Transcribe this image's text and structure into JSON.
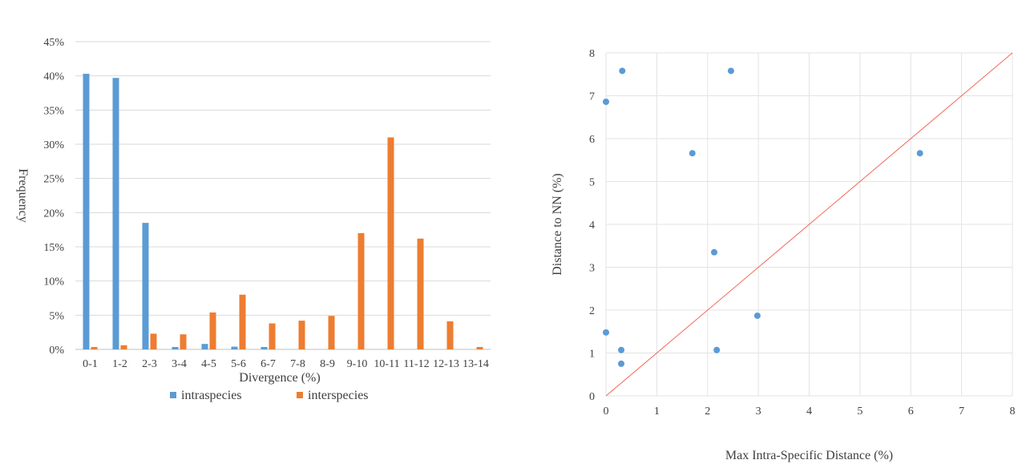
{
  "chart_data": [
    {
      "type": "bar",
      "title": "",
      "xlabel": "Divergence (%)",
      "ylabel": "Frequency",
      "categories": [
        "0-1",
        "1-2",
        "2-3",
        "3-4",
        "4-5",
        "5-6",
        "6-7",
        "7-8",
        "8-9",
        "9-10",
        "10-11",
        "11-12",
        "12-13",
        "13-14"
      ],
      "series": [
        {
          "name": "intraspecies",
          "color": "#5b9bd5",
          "values": [
            40.3,
            39.7,
            18.5,
            0.35,
            0.8,
            0.4,
            0.35,
            0,
            0,
            0,
            0,
            0,
            0,
            0
          ]
        },
        {
          "name": "interspecies",
          "color": "#ed7d31",
          "values": [
            0.35,
            0.6,
            2.3,
            2.2,
            5.4,
            8.0,
            3.8,
            4.2,
            4.9,
            17.0,
            31.0,
            16.2,
            4.1,
            0.35
          ]
        }
      ],
      "ylim": [
        0,
        45
      ],
      "yticks": [
        "0%",
        "5%",
        "10%",
        "15%",
        "20%",
        "25%",
        "30%",
        "35%",
        "40%",
        "45%"
      ],
      "grid": true,
      "legend": "bottom"
    },
    {
      "type": "scatter",
      "title": "",
      "xlabel": "Max Intra-Specific Distance (%)",
      "ylabel": "Distance to NN (%)",
      "xlim": [
        0,
        8
      ],
      "ylim": [
        0,
        8
      ],
      "xticks": [
        "0",
        "1",
        "2",
        "3",
        "4",
        "5",
        "6",
        "7",
        "8"
      ],
      "yticks": [
        "0",
        "1",
        "2",
        "3",
        "4",
        "5",
        "6",
        "7",
        "8"
      ],
      "grid": true,
      "point_color": "#5b9bd5",
      "reference_line": {
        "label": "y = x",
        "color": "#f4695a"
      },
      "points": [
        {
          "x": 0,
          "y": 6.86
        },
        {
          "x": 0.32,
          "y": 7.58
        },
        {
          "x": 2.46,
          "y": 7.58
        },
        {
          "x": 1.7,
          "y": 5.66
        },
        {
          "x": 6.18,
          "y": 5.66
        },
        {
          "x": 2.13,
          "y": 3.35
        },
        {
          "x": 2.98,
          "y": 1.87
        },
        {
          "x": 0,
          "y": 1.48
        },
        {
          "x": 0.3,
          "y": 1.07
        },
        {
          "x": 2.18,
          "y": 1.07
        },
        {
          "x": 0.3,
          "y": 0.75
        }
      ]
    }
  ]
}
